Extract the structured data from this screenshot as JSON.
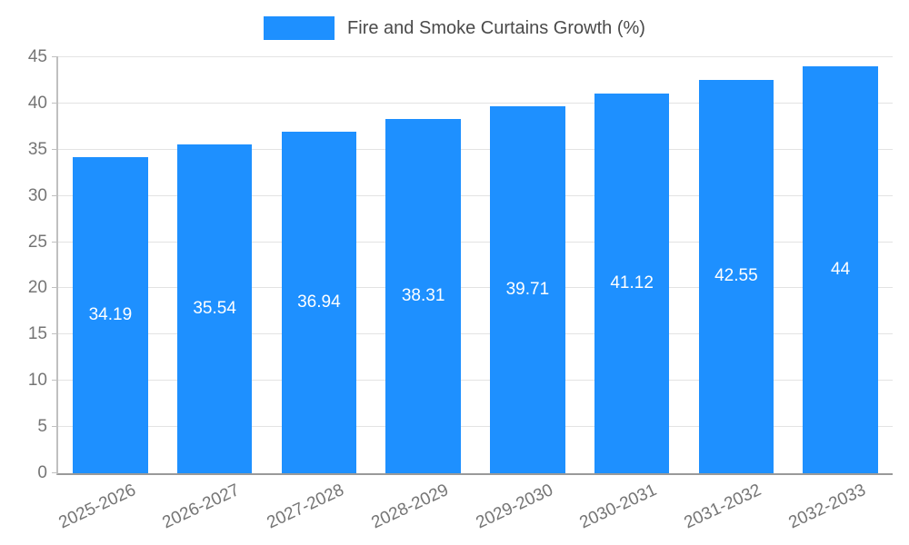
{
  "chart_data": {
    "type": "bar",
    "title": "Fire and Smoke Curtains Growth (%)",
    "categories": [
      "2025-2026",
      "2026-2027",
      "2027-2028",
      "2028-2029",
      "2029-2030",
      "2030-2031",
      "2031-2032",
      "2032-2033"
    ],
    "values": [
      34.19,
      35.54,
      36.94,
      38.31,
      39.71,
      41.12,
      42.55,
      44
    ],
    "value_labels": [
      "34.19",
      "35.54",
      "36.94",
      "38.31",
      "39.71",
      "41.12",
      "42.55",
      "44"
    ],
    "ylim": [
      0,
      45
    ],
    "yticks": [
      0,
      5,
      10,
      15,
      20,
      25,
      30,
      35,
      40,
      45
    ],
    "grid": true,
    "legend_position": "top",
    "bar_color": "#1e90ff",
    "value_label_color": "#ffffff",
    "axis_text_color": "#757575"
  }
}
